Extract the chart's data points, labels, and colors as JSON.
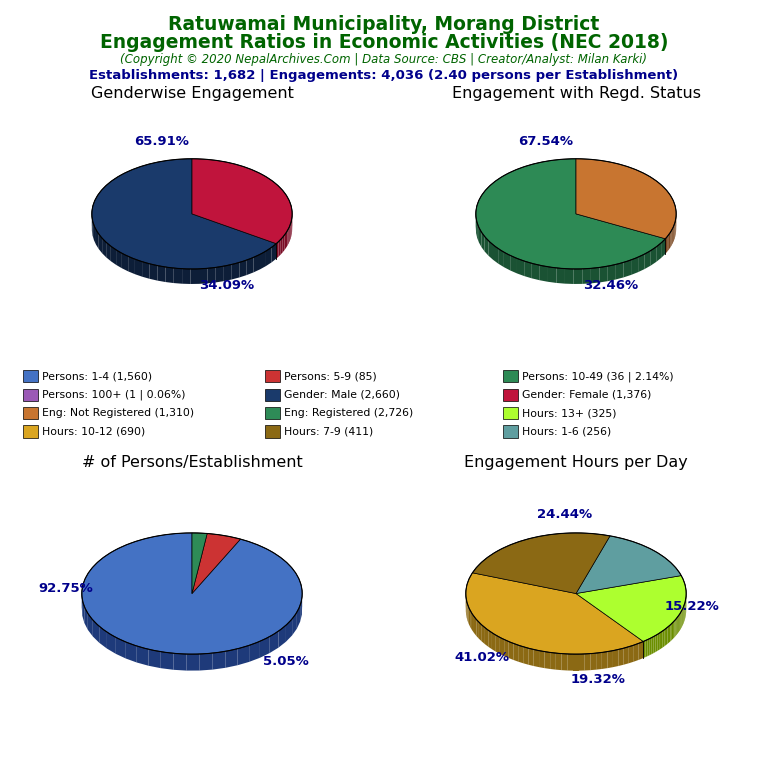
{
  "title_line1": "Ratuwamai Municipality, Morang District",
  "title_line2": "Engagement Ratios in Economic Activities (NEC 2018)",
  "subtitle": "(Copyright © 2020 NepalArchives.Com | Data Source: CBS | Creator/Analyst: Milan Karki)",
  "stats_line": "Establishments: 1,682 | Engagements: 4,036 (2.40 persons per Establishment)",
  "title_color": "#006400",
  "subtitle_color": "#006400",
  "stats_color": "#00008B",
  "pie1_title": "Genderwise Engagement",
  "pie1_values": [
    65.91,
    34.09
  ],
  "pie1_colors": [
    "#1a3a6b",
    "#c0143c"
  ],
  "pie1_shadow_colors": [
    "#0d1e38",
    "#7a0c26"
  ],
  "pie1_labels": [
    "65.91%",
    "34.09%"
  ],
  "pie1_startangle": 90,
  "pie2_title": "Engagement with Regd. Status",
  "pie2_values": [
    67.54,
    32.46
  ],
  "pie2_colors": [
    "#2d8a55",
    "#c87530"
  ],
  "pie2_shadow_colors": [
    "#1a5233",
    "#7a4720"
  ],
  "pie2_labels": [
    "67.54%",
    "32.46%"
  ],
  "pie2_startangle": 90,
  "pie3_title": "# of Persons/Establishment",
  "pie3_values": [
    92.75,
    5.05,
    2.2
  ],
  "pie3_colors": [
    "#4472c4",
    "#cc3333",
    "#2e8b57"
  ],
  "pie3_shadow_colors": [
    "#1e3a7a",
    "#8b1a1a",
    "#1a5233"
  ],
  "pie3_labels": [
    "92.75%",
    "5.05%",
    ""
  ],
  "pie3_startangle": 90,
  "pie4_title": "Engagement Hours per Day",
  "pie4_values": [
    41.02,
    19.32,
    15.22,
    24.44
  ],
  "pie4_colors": [
    "#DAA520",
    "#ADFF2F",
    "#5f9ea0",
    "#8B6914"
  ],
  "pie4_shadow_colors": [
    "#8B6914",
    "#6B8E00",
    "#2F6E70",
    "#4a3a0a"
  ],
  "pie4_labels": [
    "41.02%",
    "19.32%",
    "15.22%",
    "24.44%"
  ],
  "pie4_startangle": 160,
  "label_color": "#00008B",
  "legend_items": [
    {
      "label": "Persons: 1-4 (1,560)",
      "color": "#4472c4"
    },
    {
      "label": "Persons: 5-9 (85)",
      "color": "#cc3333"
    },
    {
      "label": "Persons: 10-49 (36 | 2.14%)",
      "color": "#2d8a55"
    },
    {
      "label": "Persons: 100+ (1 | 0.06%)",
      "color": "#9b59b6"
    },
    {
      "label": "Gender: Male (2,660)",
      "color": "#1a3a6b"
    },
    {
      "label": "Gender: Female (1,376)",
      "color": "#c0143c"
    },
    {
      "label": "Eng: Not Registered (1,310)",
      "color": "#c87530"
    },
    {
      "label": "Eng: Registered (2,726)",
      "color": "#2e8b57"
    },
    {
      "label": "Hours: 13+ (325)",
      "color": "#ADFF2F"
    },
    {
      "label": "Hours: 10-12 (690)",
      "color": "#DAA520"
    },
    {
      "label": "Hours: 7-9 (411)",
      "color": "#8B6914"
    },
    {
      "label": "Hours: 1-6 (256)",
      "color": "#5f9ea0"
    }
  ]
}
